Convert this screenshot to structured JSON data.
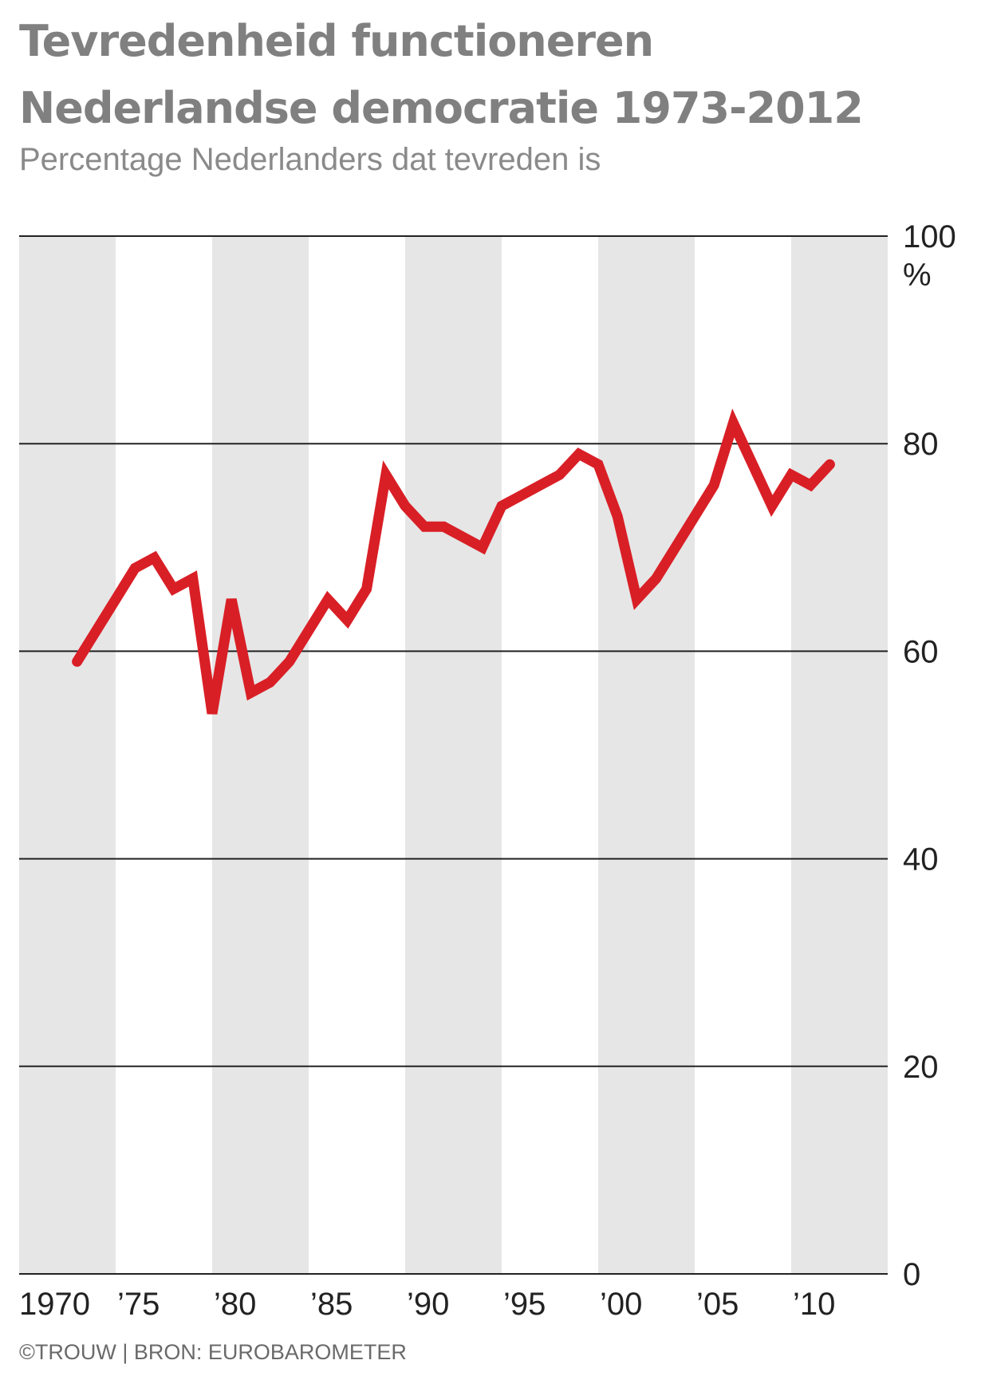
{
  "title": {
    "line1": "Tevredenheid functioneren",
    "line2": "Nederlandse democratie 1973-2012"
  },
  "subtitle": "Percentage Nederlanders dat tevreden is",
  "footer": "©TROUW | BRON: EUROBAROMETER",
  "colors": {
    "line": "#d91f26",
    "band": "#e6e6e6",
    "grid": "#222222",
    "title": "#808080"
  },
  "chart_data": {
    "type": "line",
    "title": "Tevredenheid functioneren Nederlandse democratie 1973-2012",
    "subtitle": "Percentage Nederlanders dat tevreden is",
    "xlabel": "",
    "ylabel": "",
    "y_unit": "%",
    "xlim": [
      1970,
      2015
    ],
    "ylim": [
      0,
      100
    ],
    "grid": "horizontal",
    "x_tick_labels": [
      "1970",
      "’75",
      "’80",
      "’85",
      "’90",
      "’95",
      "’00",
      "’05",
      "’10"
    ],
    "x_tick_values": [
      1970,
      1975,
      1980,
      1985,
      1990,
      1995,
      2000,
      2005,
      2010
    ],
    "y_tick_labels": [
      "0",
      "20",
      "40",
      "60",
      "80",
      "100"
    ],
    "y_tick_values": [
      0,
      20,
      40,
      60,
      80,
      100
    ],
    "shaded_bands": [
      [
        1970,
        1975
      ],
      [
        1980,
        1985
      ],
      [
        1990,
        1995
      ],
      [
        2000,
        2005
      ],
      [
        2010,
        2015
      ]
    ],
    "series": [
      {
        "x": [
          1973,
          1974,
          1975,
          1976,
          1977,
          1978,
          1979,
          1980,
          1981,
          1982,
          1983,
          1984,
          1985,
          1986,
          1987,
          1988,
          1989,
          1990,
          1991,
          1992,
          1993,
          1994,
          1995,
          1996,
          1997,
          1998,
          1999,
          2000,
          2001,
          2002,
          2003,
          2004,
          2005,
          2006,
          2007,
          2008,
          2009,
          2010,
          2011,
          2012
        ],
        "values": [
          59,
          62,
          65,
          68,
          69,
          66,
          67,
          54,
          65,
          56,
          57,
          59,
          62,
          65,
          63,
          66,
          77,
          74,
          72,
          72,
          71,
          70,
          74,
          75,
          76,
          77,
          79,
          78,
          73,
          65,
          67,
          70,
          73,
          76,
          82,
          78,
          74,
          77,
          76,
          78
        ]
      }
    ]
  }
}
